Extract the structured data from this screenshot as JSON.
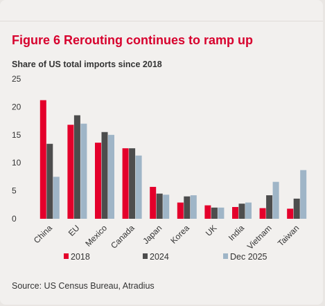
{
  "chart_data": {
    "type": "bar",
    "title": "Figure 6 Rerouting continues to ramp up",
    "subtitle": "Share of US total imports since 2018",
    "source": "Source: US Census Bureau, Atradius",
    "xlabel": "",
    "ylabel": "",
    "ylim": [
      0,
      25
    ],
    "yticks": [
      "0",
      "5",
      "10",
      "15",
      "20",
      "25"
    ],
    "grid": false,
    "legend_position": "bottom",
    "categories": [
      "China",
      "EU",
      "Mexico",
      "Canada",
      "Japan",
      "Korea",
      "UK",
      "India",
      "Vietnam",
      "Taiwan"
    ],
    "series": [
      {
        "name": "2018",
        "color": "#e4002b",
        "values": [
          21.2,
          16.8,
          13.6,
          12.6,
          5.7,
          2.9,
          2.4,
          2.1,
          1.9,
          1.8
        ]
      },
      {
        "name": "2024",
        "color": "#4d4d4d",
        "values": [
          13.4,
          18.5,
          15.5,
          12.6,
          4.5,
          4.0,
          2.0,
          2.7,
          4.2,
          3.6
        ]
      },
      {
        "name": "Dec 2025",
        "color": "#9fb5c7",
        "values": [
          7.5,
          17.0,
          15.0,
          11.3,
          4.3,
          4.2,
          2.0,
          2.9,
          6.6,
          8.7
        ]
      }
    ]
  }
}
